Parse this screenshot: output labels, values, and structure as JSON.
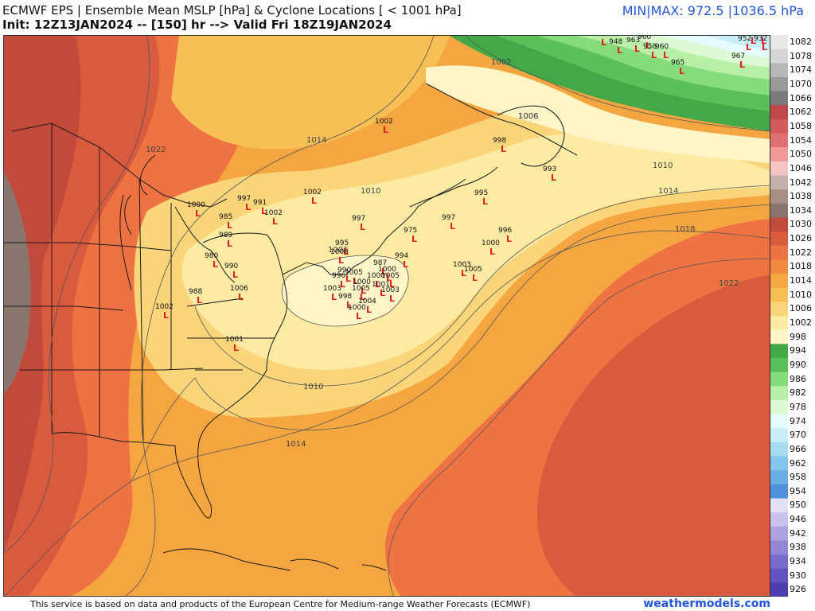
{
  "header": {
    "title": "ECMWF EPS | Ensemble Mean MSLP [hPa] & Cyclone Locations [ < 1001 hPa]",
    "init_line": "Init: 12Z13JAN2024 -- [150] hr --> Valid Fri 18Z19JAN2024",
    "minmax": "MIN|MAX: 972.5 |1036.5 hPa"
  },
  "footer": {
    "credit": "This service is based on data and products of the European Centre for Medium-range Weather Forecasts (ECMWF)",
    "brand": "weathermodels.com"
  },
  "colorbar": {
    "ticks": [
      "1082",
      "1078",
      "1074",
      "1070",
      "1066",
      "1062",
      "1058",
      "1054",
      "1050",
      "1046",
      "1042",
      "1038",
      "1034",
      "1030",
      "1026",
      "1022",
      "1018",
      "1014",
      "1010",
      "1006",
      "1002",
      "998",
      "994",
      "990",
      "986",
      "982",
      "978",
      "974",
      "970",
      "966",
      "962",
      "958",
      "954",
      "950",
      "946",
      "942",
      "938",
      "934",
      "930",
      "926"
    ],
    "colors": [
      "#e8e8e8",
      "#d6d6d6",
      "#b8b8b8",
      "#9a9a9a",
      "#7a7a7a",
      "#c24848",
      "#d45a5a",
      "#e07070",
      "#ee9a9a",
      "#f4c4c4",
      "#c8b0aa",
      "#a88f88",
      "#8a746e",
      "#c24a3a",
      "#da5a3e",
      "#ee7242",
      "#f0893e",
      "#f6a640",
      "#f8bf56",
      "#fbd57a",
      "#fdeba4",
      "#fff6c8",
      "#44a846",
      "#5cc05a",
      "#86dc7a",
      "#b8f0a8",
      "#dcfad4",
      "#e6fbfb",
      "#c8eef8",
      "#a6dcf2",
      "#86c6ee",
      "#6aaee6",
      "#4e92dc",
      "#e2e0f4",
      "#c8c2ec",
      "#aca2e0",
      "#9286d6",
      "#786ccb",
      "#6253c0",
      "#4d3eb2"
    ]
  },
  "isobars": {
    "labels": [
      "1022",
      "1014",
      "1010",
      "1006",
      "1002",
      "1006",
      "1010",
      "1014",
      "1018",
      "1022",
      "1010",
      "1014",
      "1006"
    ]
  },
  "cyclones": [
    {
      "p": "947"
    },
    {
      "p": "948"
    },
    {
      "p": "963"
    },
    {
      "p": "960"
    },
    {
      "p": "958"
    },
    {
      "p": "960"
    },
    {
      "p": "965"
    },
    {
      "p": "967"
    },
    {
      "p": "961"
    },
    {
      "p": "937"
    },
    {
      "p": "952"
    },
    {
      "p": "932"
    },
    {
      "p": "1002"
    },
    {
      "p": "998"
    },
    {
      "p": "993"
    },
    {
      "p": "995"
    },
    {
      "p": "997"
    },
    {
      "p": "996"
    },
    {
      "p": "1000"
    },
    {
      "p": "975"
    },
    {
      "p": "994"
    },
    {
      "p": "1003"
    },
    {
      "p": "1005"
    },
    {
      "p": "1002"
    },
    {
      "p": "997"
    },
    {
      "p": "991"
    },
    {
      "p": "1002"
    },
    {
      "p": "1000"
    },
    {
      "p": "985"
    },
    {
      "p": "989"
    },
    {
      "p": "980"
    },
    {
      "p": "990"
    },
    {
      "p": "988"
    },
    {
      "p": "1006"
    },
    {
      "p": "1002"
    },
    {
      "p": "1001"
    },
    {
      "p": "997"
    },
    {
      "p": "995"
    },
    {
      "p": "1006"
    },
    {
      "p": "990"
    },
    {
      "p": "996"
    },
    {
      "p": "1005"
    },
    {
      "p": "987"
    },
    {
      "p": "1000"
    },
    {
      "p": "1000"
    },
    {
      "p": "1005"
    },
    {
      "p": "1000"
    },
    {
      "p": "1001"
    },
    {
      "p": "1003"
    },
    {
      "p": "1005"
    },
    {
      "p": "998"
    },
    {
      "p": "1004"
    },
    {
      "p": "1000"
    },
    {
      "p": "1003"
    }
  ],
  "colors": {
    "accent": "#2255dd",
    "cyclone_marker": "#e02020"
  }
}
